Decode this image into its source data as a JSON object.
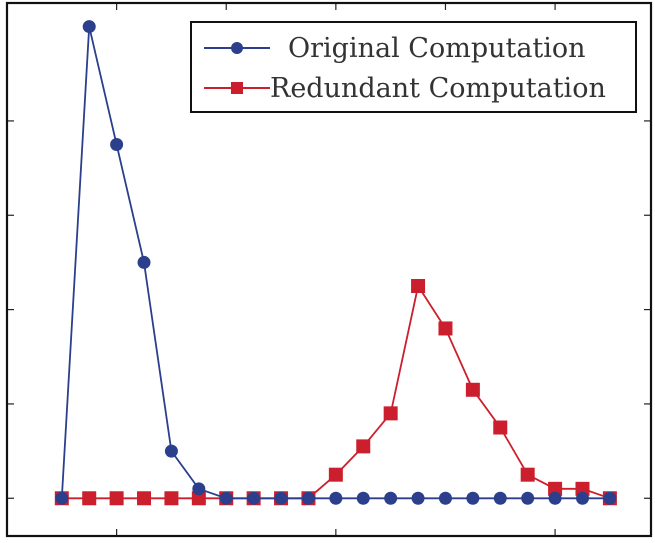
{
  "chart_data": {
    "type": "line",
    "title": "",
    "xlabel": "",
    "ylabel": "",
    "grid": false,
    "legend_position": "top-right",
    "x": [
      0,
      1,
      2,
      3,
      4,
      5,
      6,
      7,
      8,
      9,
      10,
      11,
      12,
      13,
      14,
      15,
      16,
      17,
      18,
      19,
      20
    ],
    "xlim": [
      -2,
      21.5
    ],
    "ylim": [
      -0.08,
      1.05
    ],
    "series": [
      {
        "name": "Original Computation",
        "color": "#2b3f8c",
        "marker": "circle",
        "values": [
          0,
          1.0,
          0.75,
          0.5,
          0.1,
          0.02,
          0,
          0,
          0,
          0,
          0,
          0,
          0,
          0,
          0,
          0,
          0,
          0,
          0,
          0,
          0
        ]
      },
      {
        "name": "Redundant Computation",
        "color": "#cc1f2d",
        "marker": "square",
        "values": [
          0,
          0,
          0,
          0,
          0,
          0,
          0,
          0,
          0,
          0,
          0.05,
          0.11,
          0.18,
          0.45,
          0.36,
          0.23,
          0.15,
          0.05,
          0.02,
          0.02,
          0
        ]
      }
    ]
  }
}
